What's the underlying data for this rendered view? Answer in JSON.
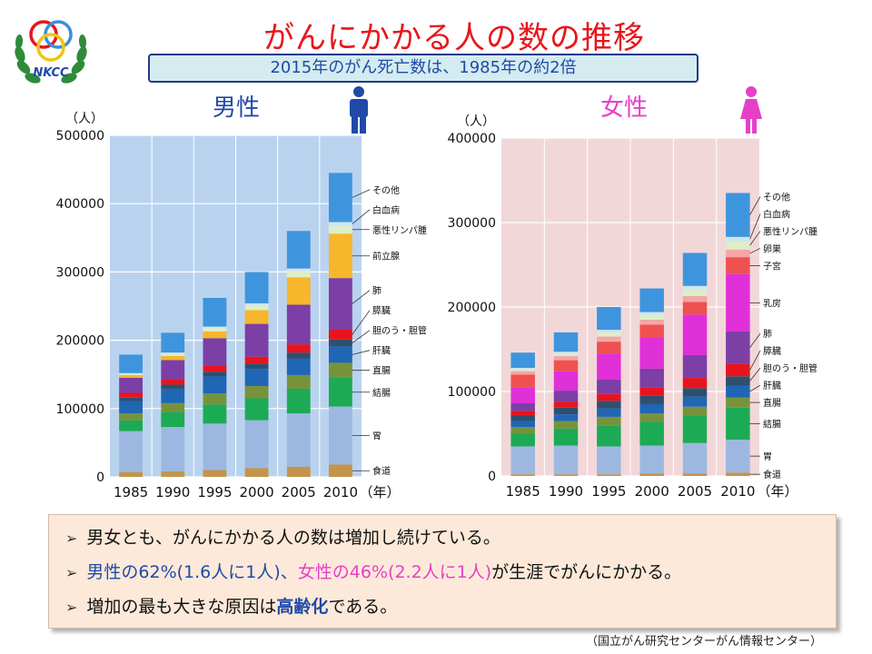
{
  "slide": {
    "title": "がんにかかる人の数の推移",
    "subtitle": "2015年のがん死亡数は、1985年の約2倍",
    "source": "（国立がん研究センターがん情報センター）"
  },
  "notes": [
    {
      "arrow": "➢",
      "text": "男女とも、がんにかかる人の数は増加し続けている。"
    },
    {
      "arrow": "➢",
      "male": "男性の62%(1.6人に1人)",
      "sep": "、",
      "female": "女性の46%(2.2人に1人)",
      "rest": "が生涯でがんにかかる。"
    },
    {
      "arrow": "➢",
      "pre": "増加の最も大きな原因は",
      "emph": "高齢化",
      "post": "である。"
    }
  ],
  "colors": {
    "male_bg": "#b9d3ef",
    "female_bg": "#f2d7d9",
    "title_red": "#e8151b",
    "male_blue": "#1f4aa8",
    "female_pink": "#e640c8"
  },
  "icons": {
    "logo": "nkcc-logo",
    "male": "man-icon",
    "female": "woman-icon"
  },
  "logo_text": "NKCC",
  "chart_data": [
    {
      "type": "bar",
      "stacked": true,
      "title": "男性",
      "ylabel": "（人）",
      "xlabel": "（年）",
      "ylim": [
        0,
        500000
      ],
      "yticks": [
        "0",
        "100000",
        "200000",
        "300000",
        "400000",
        "500000"
      ],
      "categories": [
        "1985",
        "1990",
        "1995",
        "2000",
        "2005",
        "2010"
      ],
      "series": [
        {
          "name": "食道",
          "color": "#c4944b",
          "values": [
            7000,
            8000,
            10000,
            13000,
            15000,
            18000
          ]
        },
        {
          "name": "胃",
          "color": "#9db8e0",
          "values": [
            60000,
            65000,
            68000,
            70000,
            78000,
            85000
          ]
        },
        {
          "name": "結腸",
          "color": "#1daa55",
          "values": [
            16000,
            22000,
            28000,
            32000,
            36000,
            42000
          ]
        },
        {
          "name": "直腸",
          "color": "#76933c",
          "values": [
            10000,
            13000,
            16000,
            18000,
            20000,
            22000
          ]
        },
        {
          "name": "肝臓",
          "color": "#1f66b5",
          "values": [
            18000,
            21000,
            25000,
            25000,
            24000,
            24000
          ]
        },
        {
          "name": "胆のう・胆管",
          "color": "#2f4f6f",
          "values": [
            5000,
            6000,
            7000,
            8000,
            9000,
            10000
          ]
        },
        {
          "name": "膵臓",
          "color": "#e8141d",
          "values": [
            7000,
            8000,
            9000,
            10000,
            12000,
            15000
          ]
        },
        {
          "name": "肺",
          "color": "#7b3fa6",
          "values": [
            22000,
            28000,
            40000,
            48000,
            58000,
            75000
          ]
        },
        {
          "name": "前立腺",
          "color": "#f7b62b",
          "values": [
            4000,
            6000,
            10000,
            20000,
            40000,
            65000
          ]
        },
        {
          "name": "悪性リンパ腫",
          "color": "#ddeec8",
          "values": [
            2000,
            3000,
            5000,
            7000,
            10000,
            12000
          ]
        },
        {
          "name": "白血病",
          "color": "#d0e4f4",
          "values": [
            1000,
            2000,
            2000,
            3000,
            3000,
            5000
          ]
        },
        {
          "name": "その他",
          "color": "#3f95dd",
          "values": [
            27000,
            29000,
            42000,
            46000,
            55000,
            72000
          ]
        }
      ]
    },
    {
      "type": "bar",
      "stacked": true,
      "title": "女性",
      "ylabel": "（人）",
      "xlabel": "（年）",
      "ylim": [
        0,
        400000
      ],
      "yticks": [
        "0",
        "100000",
        "200000",
        "300000",
        "400000"
      ],
      "categories": [
        "1985",
        "1990",
        "1995",
        "2000",
        "2005",
        "2010"
      ],
      "series": [
        {
          "name": "食道",
          "color": "#c4944b",
          "values": [
            2000,
            2000,
            2000,
            3000,
            3000,
            4000
          ]
        },
        {
          "name": "胃",
          "color": "#9db8e0",
          "values": [
            33000,
            34000,
            33000,
            33000,
            36000,
            39000
          ]
        },
        {
          "name": "結腸",
          "color": "#1daa55",
          "values": [
            15000,
            20000,
            25000,
            28000,
            32000,
            38000
          ]
        },
        {
          "name": "直腸",
          "color": "#76933c",
          "values": [
            8000,
            9000,
            10000,
            10000,
            11000,
            12000
          ]
        },
        {
          "name": "肝臓",
          "color": "#1f66b5",
          "values": [
            7000,
            8000,
            10000,
            11000,
            12000,
            14000
          ]
        },
        {
          "name": "胆のう・胆管",
          "color": "#2f4f6f",
          "values": [
            7000,
            8000,
            9000,
            10000,
            10000,
            11000
          ]
        },
        {
          "name": "膵臓",
          "color": "#e8141d",
          "values": [
            5000,
            7000,
            8000,
            10000,
            12000,
            15000
          ]
        },
        {
          "name": "肺",
          "color": "#7b3fa6",
          "values": [
            9000,
            13000,
            17000,
            22000,
            27000,
            38000
          ]
        },
        {
          "name": "乳房",
          "color": "#e030d8",
          "values": [
            19000,
            23000,
            31000,
            37000,
            48000,
            68000
          ]
        },
        {
          "name": "子宮",
          "color": "#f05050",
          "values": [
            15000,
            13000,
            14000,
            15000,
            15000,
            20000
          ]
        },
        {
          "name": "卵巣",
          "color": "#f4a6a6",
          "values": [
            4000,
            5000,
            6000,
            6000,
            7000,
            9000
          ]
        },
        {
          "name": "悪性リンパ腫",
          "color": "#ddeec8",
          "values": [
            2000,
            3000,
            5000,
            6000,
            8000,
            10000
          ]
        },
        {
          "name": "白血病",
          "color": "#d0e4f4",
          "values": [
            2000,
            2000,
            3000,
            3000,
            4000,
            5000
          ]
        },
        {
          "name": "その他",
          "color": "#3f95dd",
          "values": [
            18000,
            23000,
            27000,
            28000,
            39000,
            52000
          ]
        }
      ]
    }
  ]
}
